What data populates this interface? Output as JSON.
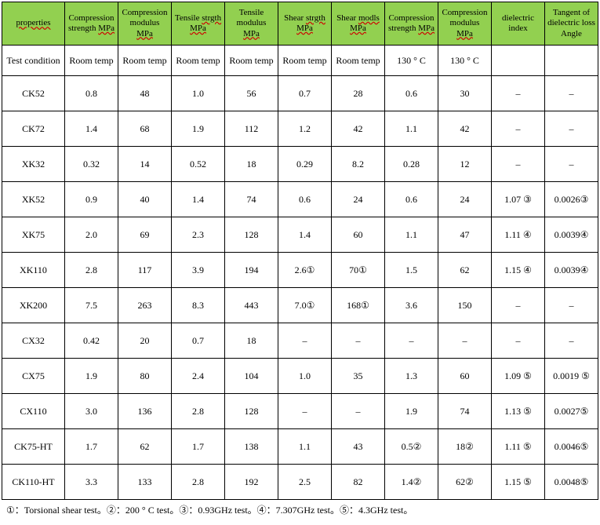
{
  "header_bg": "#92d050",
  "columns": [
    {
      "label_pre": "",
      "label_main": "properties",
      "label_post": ""
    },
    {
      "label_pre": "Compression strength ",
      "label_main": "",
      "label_post": "",
      "unit": "MPa"
    },
    {
      "label_pre": "Compression modulus ",
      "label_main": "",
      "label_post": "",
      "unit": "MPa"
    },
    {
      "label_pre": "Tensile ",
      "label_main": "strgth",
      "label_post": "",
      "unit": "MPa"
    },
    {
      "label_pre": "Tensile modulus ",
      "label_main": "",
      "label_post": "",
      "unit": "MPa"
    },
    {
      "label_pre": "Shear ",
      "label_main": "strgth",
      "label_post": "",
      "unit": "MPa"
    },
    {
      "label_pre": "Shear ",
      "label_main": "modls",
      "label_post": "",
      "unit": "MPa"
    },
    {
      "label_pre": "Compression strength ",
      "label_main": "",
      "label_post": "",
      "unit": "MPa"
    },
    {
      "label_pre": "Compression modulus ",
      "label_main": "",
      "label_post": "",
      "unit": "MPa"
    },
    {
      "label_pre": "dielectric index",
      "label_main": "",
      "label_post": ""
    },
    {
      "label_pre": "Tangent of dielectric loss Angle",
      "label_main": "",
      "label_post": ""
    }
  ],
  "test_condition_label": "Test condition",
  "test_conditions": [
    "Room temp",
    "Room temp",
    "Room temp",
    "Room temp",
    "Room temp",
    "Room temp",
    "130 ° C",
    "130 ° C",
    "",
    ""
  ],
  "rows": [
    {
      "name": "CK52",
      "v": [
        "0.8",
        "48",
        "1.0",
        "56",
        "0.7",
        "28",
        "0.6",
        "30",
        "–",
        "–"
      ]
    },
    {
      "name": "CK72",
      "v": [
        "1.4",
        "68",
        "1.9",
        "112",
        "1.2",
        "42",
        "1.1",
        "42",
        "–",
        "–"
      ]
    },
    {
      "name": "XK32",
      "v": [
        "0.32",
        "14",
        "0.52",
        "18",
        "0.29",
        "8.2",
        "0.28",
        "12",
        "–",
        "–"
      ]
    },
    {
      "name": "XK52",
      "v": [
        "0.9",
        "40",
        "1.4",
        "74",
        "0.6",
        "24",
        "0.6",
        "24",
        "1.07 ③",
        "0.0026③"
      ]
    },
    {
      "name": "XK75",
      "v": [
        "2.0",
        "69",
        "2.3",
        "128",
        "1.4",
        "60",
        "1.1",
        "47",
        "1.11 ④",
        "0.0039④"
      ]
    },
    {
      "name": "XK110",
      "v": [
        "2.8",
        "117",
        "3.9",
        "194",
        "2.6①",
        "70①",
        "1.5",
        "62",
        "1.15 ④",
        "0.0039④"
      ]
    },
    {
      "name": "XK200",
      "v": [
        "7.5",
        "263",
        "8.3",
        "443",
        "7.0①",
        "168①",
        "3.6",
        "150",
        "–",
        "–"
      ]
    },
    {
      "name": "CX32",
      "v": [
        "0.42",
        "20",
        "0.7",
        "18",
        "–",
        "–",
        "–",
        "–",
        "–",
        "–"
      ]
    },
    {
      "name": "CX75",
      "v": [
        "1.9",
        "80",
        "2.4",
        "104",
        "1.0",
        "35",
        "1.3",
        "60",
        "1.09 ⑤",
        "0.0019 ⑤"
      ]
    },
    {
      "name": "CX110",
      "v": [
        "3.0",
        "136",
        "2.8",
        "128",
        "–",
        "–",
        "1.9",
        "74",
        "1.13 ⑤",
        "0.0027⑤"
      ]
    },
    {
      "name": "CK75-HT",
      "v": [
        "1.7",
        "62",
        "1.7",
        "138",
        "1.1",
        "43",
        "0.5②",
        "18②",
        "1.11 ⑤",
        "0.0046⑤"
      ]
    },
    {
      "name": "CK110-HT",
      "v": [
        "3.3",
        "133",
        "2.8",
        "192",
        "2.5",
        "82",
        "1.4②",
        "62②",
        "1.15 ⑤",
        "0.0048⑤"
      ]
    }
  ],
  "footnote": "①：Torsional shear test。②：200 ° C test。③：0.93GHz test。④：7.307GHz test。⑤：4.3GHz test。"
}
